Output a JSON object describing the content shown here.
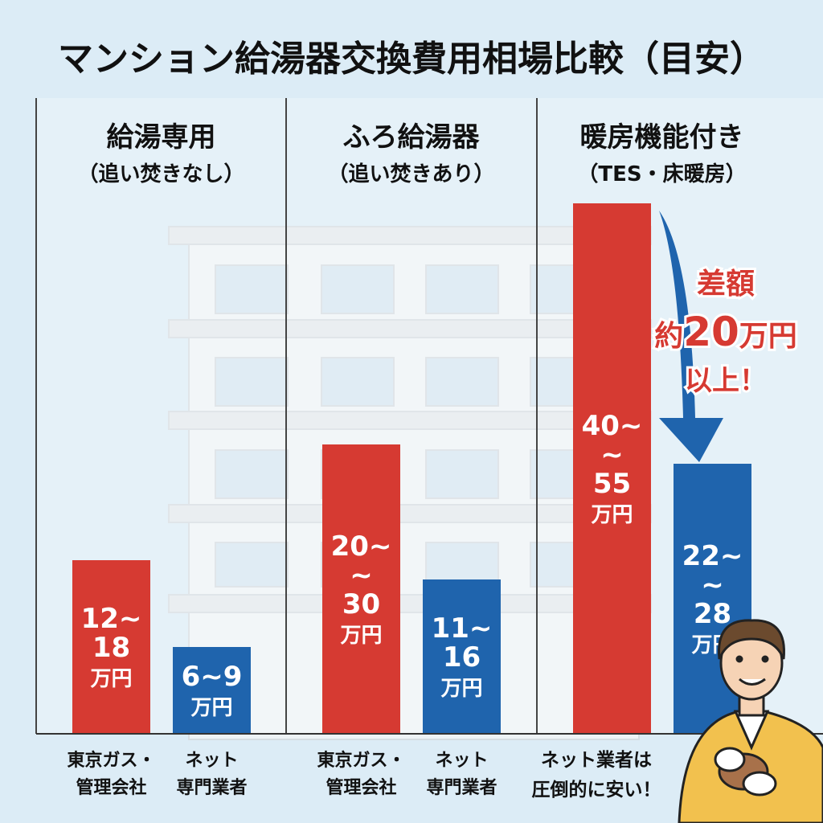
{
  "chart_data": {
    "type": "bar",
    "title": "マンション給湯器交換費用相場比較（目安）",
    "unit": "万円",
    "groups": [
      {
        "title": "給湯専用",
        "subtitle": "（追い焚きなし）",
        "bars": [
          {
            "label": [
              "東京ガス・",
              "管理会社"
            ],
            "range": [
              12,
              18
            ],
            "text": [
              "12~",
              "18",
              "万円"
            ],
            "color": "#d63a32"
          },
          {
            "label": [
              "ネット",
              "専門業者"
            ],
            "range": [
              6,
              9
            ],
            "text": [
              "6~9",
              "万円"
            ],
            "color": "#1f64ad"
          }
        ]
      },
      {
        "title": "ふろ給湯器",
        "subtitle": "（追い焚きあり）",
        "bars": [
          {
            "label": [
              "東京ガス・",
              "管理会社"
            ],
            "range": [
              20,
              30
            ],
            "text": [
              "20~",
              "~",
              "30",
              "万円"
            ],
            "color": "#d63a32"
          },
          {
            "label": [
              "ネット",
              "専門業者"
            ],
            "range": [
              11,
              16
            ],
            "text": [
              "11~",
              "16",
              "万円"
            ],
            "color": "#1f64ad"
          }
        ]
      },
      {
        "title": "暖房機能付き",
        "subtitle": "（TES・床暖房）",
        "bars": [
          {
            "label": [],
            "range": [
              40,
              55
            ],
            "text": [
              "40~",
              "~",
              "55",
              "万円"
            ],
            "color": "#d63a32"
          },
          {
            "label": [],
            "range": [
              22,
              28
            ],
            "text": [
              "22~",
              "~",
              "28",
              "万円"
            ],
            "color": "#1f64ad"
          }
        ]
      }
    ],
    "annotation": {
      "lines": [
        "差額",
        "約",
        "20",
        "万円",
        "以上！"
      ],
      "color": "#d63a32",
      "arrow_color": "#1f64ad"
    },
    "footnote": [
      "ネット業者は",
      "圧倒的に安い！"
    ]
  }
}
